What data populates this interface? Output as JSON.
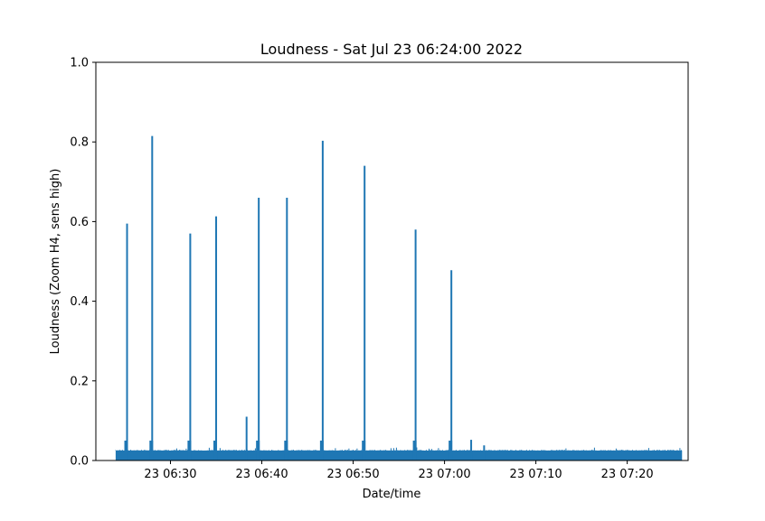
{
  "chart_data": {
    "type": "line",
    "title": "Loudness - Sat Jul 23 06:24:00 2022",
    "xlabel": "Date/time",
    "ylabel": "Loudness (Zoom H4, sens high)",
    "x_unit": "time (HH:MM on Jul 23 2022)",
    "xlim": [
      "06:21:50",
      "07:26:40"
    ],
    "ylim": [
      0,
      1.0
    ],
    "x_ticks": [
      {
        "time": "06:30",
        "label": "23 06:30"
      },
      {
        "time": "06:40",
        "label": "23 06:40"
      },
      {
        "time": "06:50",
        "label": "23 06:50"
      },
      {
        "time": "07:00",
        "label": "23 07:00"
      },
      {
        "time": "07:10",
        "label": "23 07:10"
      },
      {
        "time": "07:20",
        "label": "23 07:20"
      }
    ],
    "y_ticks": [
      {
        "value": 0.0,
        "label": "0.0"
      },
      {
        "value": 0.2,
        "label": "0.2"
      },
      {
        "value": 0.4,
        "label": "0.4"
      },
      {
        "value": 0.6,
        "label": "0.6"
      },
      {
        "value": 0.8,
        "label": "0.8"
      },
      {
        "value": 1.0,
        "label": "1.0"
      }
    ],
    "grid": false,
    "series_color": "#1f77b4",
    "series": [
      {
        "data_start": "06:24:00",
        "data_end": "07:26:00",
        "baseline_level": 0.025,
        "peaks": [
          {
            "time": "06:25:15",
            "value": 0.595
          },
          {
            "time": "06:28:00",
            "value": 0.815
          },
          {
            "time": "06:32:10",
            "value": 0.57
          },
          {
            "time": "06:35:00",
            "value": 0.613
          },
          {
            "time": "06:38:20",
            "value": 0.11
          },
          {
            "time": "06:39:40",
            "value": 0.66
          },
          {
            "time": "06:42:45",
            "value": 0.66
          },
          {
            "time": "06:46:40",
            "value": 0.803
          },
          {
            "time": "06:51:15",
            "value": 0.74
          },
          {
            "time": "06:56:50",
            "value": 0.58
          },
          {
            "time": "07:00:45",
            "value": 0.478
          },
          {
            "time": "07:02:55",
            "value": 0.052
          },
          {
            "time": "07:04:20",
            "value": 0.038
          }
        ]
      }
    ]
  }
}
